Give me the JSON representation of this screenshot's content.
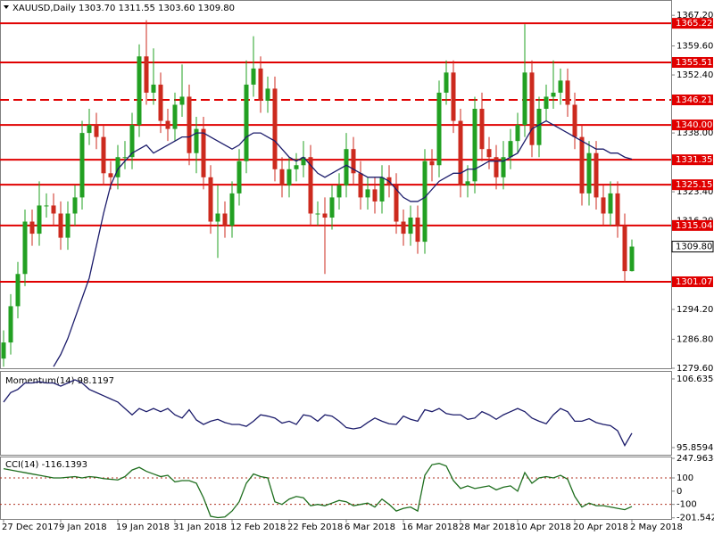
{
  "chart_data": [
    {
      "type": "candlestick",
      "title": "XAUUSD,Daily  1303.70 1311.55 1303.60 1309.80",
      "categories": [
        "27 Dec 2017",
        null,
        null,
        null,
        null,
        null,
        null,
        null,
        "9 Jan 2018",
        null,
        null,
        null,
        null,
        null,
        null,
        null,
        "19 Jan 2018",
        null,
        null,
        null,
        null,
        null,
        null,
        null,
        "31 Jan 2018",
        null,
        null,
        null,
        null,
        null,
        null,
        null,
        "12 Feb 2018",
        null,
        null,
        null,
        null,
        null,
        null,
        null,
        "22 Feb 2018",
        null,
        null,
        null,
        null,
        null,
        null,
        null,
        "6 Mar 2018",
        null,
        null,
        null,
        null,
        null,
        null,
        null,
        "16 Mar 2018",
        null,
        null,
        null,
        null,
        null,
        null,
        null,
        "28 Mar 2018",
        null,
        null,
        null,
        null,
        null,
        null,
        null,
        "10 Apr 2018",
        null,
        null,
        null,
        null,
        null,
        null,
        null,
        "20 Apr 2018",
        null,
        null,
        null,
        null,
        null,
        null,
        null,
        "2 May 2018"
      ],
      "open": [
        1282,
        1286,
        1295,
        1303,
        1316,
        1313,
        1320,
        1320,
        1318,
        1312,
        1318,
        1322,
        1338,
        1340,
        1337,
        1328,
        1327,
        1332,
        1332,
        1340,
        1357,
        1348,
        1350,
        1341,
        1339,
        1345,
        1347,
        1333,
        1339,
        1327,
        1316,
        1318,
        1315,
        1323,
        1331,
        1350,
        1354,
        1346,
        1349,
        1329,
        1325,
        1329,
        1330,
        1332,
        1318,
        1318,
        1317,
        1322,
        1325,
        1334,
        1328,
        1322,
        1324,
        1321,
        1327,
        1325,
        1316,
        1313,
        1317,
        1311,
        1331,
        1330,
        1348,
        1353,
        1341,
        1325,
        1326,
        1344,
        1334,
        1332,
        1327,
        1332,
        1336,
        1340,
        1353,
        1335,
        1344,
        1347,
        1348,
        1351,
        1345,
        1337,
        1323,
        1333,
        1322,
        1318,
        1323,
        1315,
        1303.7
      ],
      "high": [
        1289,
        1298,
        1306,
        1319,
        1319,
        1326,
        1323,
        1323,
        1321,
        1321,
        1325,
        1341,
        1344,
        1343,
        1340,
        1331,
        1335,
        1336,
        1343,
        1360,
        1366,
        1359,
        1353,
        1344,
        1348,
        1355,
        1350,
        1342,
        1342,
        1330,
        1325,
        1321,
        1326,
        1334,
        1356,
        1362,
        1357,
        1352,
        1352,
        1332,
        1332,
        1333,
        1336,
        1335,
        1321,
        1322,
        1325,
        1328,
        1338,
        1337,
        1331,
        1327,
        1327,
        1330,
        1330,
        1328,
        1319,
        1320,
        1320,
        1334,
        1334,
        1351,
        1356,
        1356,
        1344,
        1330,
        1347,
        1348,
        1337,
        1335,
        1336,
        1339,
        1343,
        1365,
        1356,
        1347,
        1350,
        1356,
        1354,
        1354,
        1348,
        1340,
        1336,
        1336,
        1325,
        1326,
        1326,
        1318,
        1311.55
      ],
      "low": [
        1280,
        1283,
        1292,
        1300,
        1310,
        1310,
        1317,
        1315,
        1309,
        1309,
        1315,
        1319,
        1335,
        1334,
        1325,
        1324,
        1324,
        1329,
        1329,
        1337,
        1345,
        1345,
        1338,
        1336,
        1336,
        1342,
        1330,
        1328,
        1324,
        1313,
        1307,
        1312,
        1312,
        1320,
        1328,
        1347,
        1343,
        1343,
        1326,
        1322,
        1322,
        1326,
        1327,
        1315,
        1315,
        1303,
        1314,
        1319,
        1322,
        1325,
        1319,
        1319,
        1318,
        1318,
        1322,
        1313,
        1310,
        1310,
        1308,
        1308,
        1326,
        1327,
        1345,
        1338,
        1322,
        1322,
        1323,
        1331,
        1329,
        1324,
        1324,
        1329,
        1333,
        1337,
        1332,
        1332,
        1341,
        1344,
        1345,
        1342,
        1334,
        1320,
        1320,
        1319,
        1315,
        1315,
        1312,
        1301,
        1303.6
      ],
      "close": [
        1286,
        1295,
        1303,
        1316,
        1313,
        1320,
        1320,
        1318,
        1312,
        1318,
        1322,
        1338,
        1340,
        1337,
        1328,
        1327,
        1332,
        1332,
        1340,
        1357,
        1348,
        1350,
        1341,
        1339,
        1345,
        1347,
        1333,
        1339,
        1327,
        1316,
        1318,
        1315,
        1323,
        1331,
        1350,
        1354,
        1346,
        1349,
        1329,
        1325,
        1329,
        1330,
        1332,
        1318,
        1318,
        1317,
        1322,
        1325,
        1334,
        1328,
        1322,
        1324,
        1321,
        1327,
        1325,
        1316,
        1313,
        1317,
        1311,
        1331,
        1330,
        1348,
        1353,
        1341,
        1325,
        1326,
        1344,
        1334,
        1332,
        1327,
        1332,
        1336,
        1340,
        1353,
        1335,
        1344,
        1347,
        1348,
        1351,
        1345,
        1337,
        1323,
        1333,
        1322,
        1318,
        1323,
        1315,
        1303.7,
        1309.8
      ],
      "up_color": "#22a022",
      "down_color": "#cc2a1e",
      "overlay": {
        "color": "#1c1c6b",
        "values": [
          null,
          null,
          null,
          null,
          null,
          null,
          null,
          1280,
          1283,
          1287,
          1292,
          1297,
          1302,
          1310,
          1318,
          1325,
          1329,
          1331,
          1333,
          1334,
          1335,
          1333,
          1334,
          1335,
          1336,
          1337,
          1337,
          1338,
          1338,
          1337,
          1336,
          1335,
          1334,
          1335,
          1337,
          1338,
          1338,
          1337,
          1336,
          1334,
          1332,
          1331,
          1332,
          1330,
          1328,
          1327,
          1328,
          1329,
          1330,
          1329,
          1328,
          1327,
          1327,
          1327,
          1326,
          1324,
          1322,
          1321,
          1321,
          1322,
          1324,
          1326,
          1327,
          1328,
          1328,
          1329,
          1329,
          1330,
          1331,
          1331,
          1331,
          1332,
          1333,
          1336,
          1339,
          1340,
          1341,
          1340,
          1339,
          1338,
          1337,
          1336,
          1335,
          1334,
          1334,
          1333,
          1333,
          1332,
          1331.5
        ]
      },
      "levels": [
        1365.22,
        1355.51,
        1346.21,
        {
          "value": 1340,
          "label": "1340.00"
        },
        1331.35,
        1325.15,
        1315.04,
        1301.07
      ],
      "level_styles": [
        "solid",
        "solid",
        "dashed",
        "solid",
        "solid",
        "solid",
        "solid",
        "solid"
      ],
      "level_color": "#e00000",
      "last_price": {
        "value": 1309.8,
        "label": "1309.80"
      },
      "ylim": [
        1279.6,
        1371
      ],
      "yticks": [
        {
          "value": 1367.2,
          "label": "1367.20"
        },
        {
          "value": 1359.6,
          "label": "1359.60"
        },
        {
          "value": 1352.4,
          "label": "1352.40"
        },
        {
          "value": 1338,
          "label": "1338.00"
        },
        {
          "value": 1323.4,
          "label": "1323.40"
        },
        {
          "value": 1316.2,
          "label": "1316.20"
        },
        {
          "value": 1294.2,
          "label": "1294.20"
        },
        {
          "value": 1286.8,
          "label": "1286.80"
        },
        {
          "value": 1279.6,
          "label": "1279.60"
        }
      ]
    },
    {
      "type": "line",
      "title": "Momentum(14) 98.1197",
      "color": "#1c1c6b",
      "values": [
        103,
        104.5,
        105,
        106,
        106,
        106.2,
        106,
        106,
        105.5,
        106,
        106.5,
        106,
        105,
        104.5,
        104,
        103.5,
        103,
        102,
        101,
        102,
        101.5,
        102,
        101.5,
        102,
        101,
        100.5,
        101.8,
        100.2,
        99.5,
        100,
        100.3,
        99.8,
        99.5,
        99.5,
        99.2,
        100,
        101,
        100.8,
        100.5,
        99.7,
        100,
        99.5,
        101,
        100.8,
        100,
        101,
        100.8,
        100,
        99,
        98.8,
        99,
        99.8,
        100.5,
        100,
        99.6,
        99.5,
        100.8,
        100.3,
        100,
        101.8,
        101.5,
        102,
        101.2,
        101,
        101,
        100.3,
        100.5,
        101.5,
        101,
        100.3,
        101,
        101.5,
        102,
        101.5,
        100.5,
        100,
        99.6,
        101,
        102,
        101.5,
        100,
        100,
        100.4,
        99.8,
        99.5,
        99.3,
        98.5,
        96.2,
        98.1197
      ],
      "ylim": [
        94.74,
        107.75
      ],
      "yticks": [
        106.6354,
        95.8594
      ]
    },
    {
      "type": "line",
      "title": "CCI(14) -116.1393",
      "color": "#1e6e1e",
      "values": [
        170,
        160,
        150,
        140,
        130,
        120,
        110,
        100,
        100,
        105,
        110,
        100,
        110,
        105,
        95,
        90,
        85,
        110,
        160,
        180,
        150,
        130,
        110,
        120,
        70,
        80,
        80,
        60,
        -50,
        -190,
        -200,
        -195,
        -150,
        -80,
        60,
        130,
        110,
        100,
        -80,
        -100,
        -60,
        -40,
        -50,
        -110,
        -100,
        -110,
        -90,
        -70,
        -80,
        -110,
        -100,
        -90,
        -120,
        -60,
        -100,
        -150,
        -130,
        -120,
        -150,
        120,
        200,
        210,
        190,
        80,
        20,
        40,
        20,
        30,
        40,
        10,
        30,
        40,
        0,
        140,
        60,
        100,
        110,
        100,
        120,
        90,
        -40,
        -120,
        -90,
        -110,
        -110,
        -120,
        -130,
        -140,
        -116.1393
      ],
      "levels": [
        100,
        -100
      ],
      "level_color": "#b03020",
      "ylim": [
        -210,
        255
      ],
      "yticks": [
        247.9634,
        100,
        0,
        -100,
        -201.5429
      ]
    }
  ]
}
